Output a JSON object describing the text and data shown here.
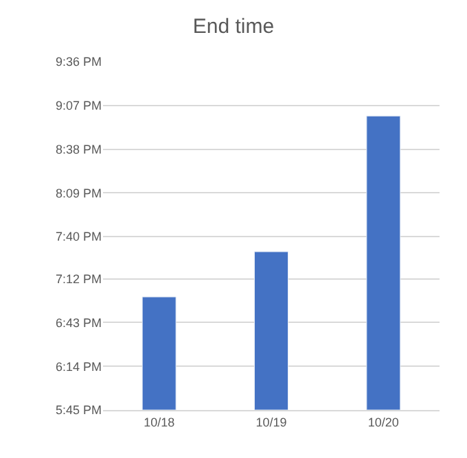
{
  "chart_data": {
    "type": "bar",
    "title": "End time",
    "categories": [
      "10/18",
      "10/19",
      "10/20"
    ],
    "values": [
      19,
      19.5,
      21
    ],
    "color": "#4472c4",
    "ylim": [
      17.75,
      21.6
    ],
    "yticks": [
      {
        "value": 17.75,
        "label": "5:45 PM"
      },
      {
        "value": 18.2333,
        "label": "6:14 PM"
      },
      {
        "value": 18.7167,
        "label": "6:43 PM"
      },
      {
        "value": 19.2,
        "label": "7:12 PM"
      },
      {
        "value": 19.6667,
        "label": "7:40 PM"
      },
      {
        "value": 20.15,
        "label": "8:09 PM"
      },
      {
        "value": 20.6333,
        "label": "8:38 PM"
      },
      {
        "value": 21.1167,
        "label": "9:07 PM"
      },
      {
        "value": 21.6,
        "label": "9:36 PM"
      }
    ],
    "grid": "y"
  }
}
